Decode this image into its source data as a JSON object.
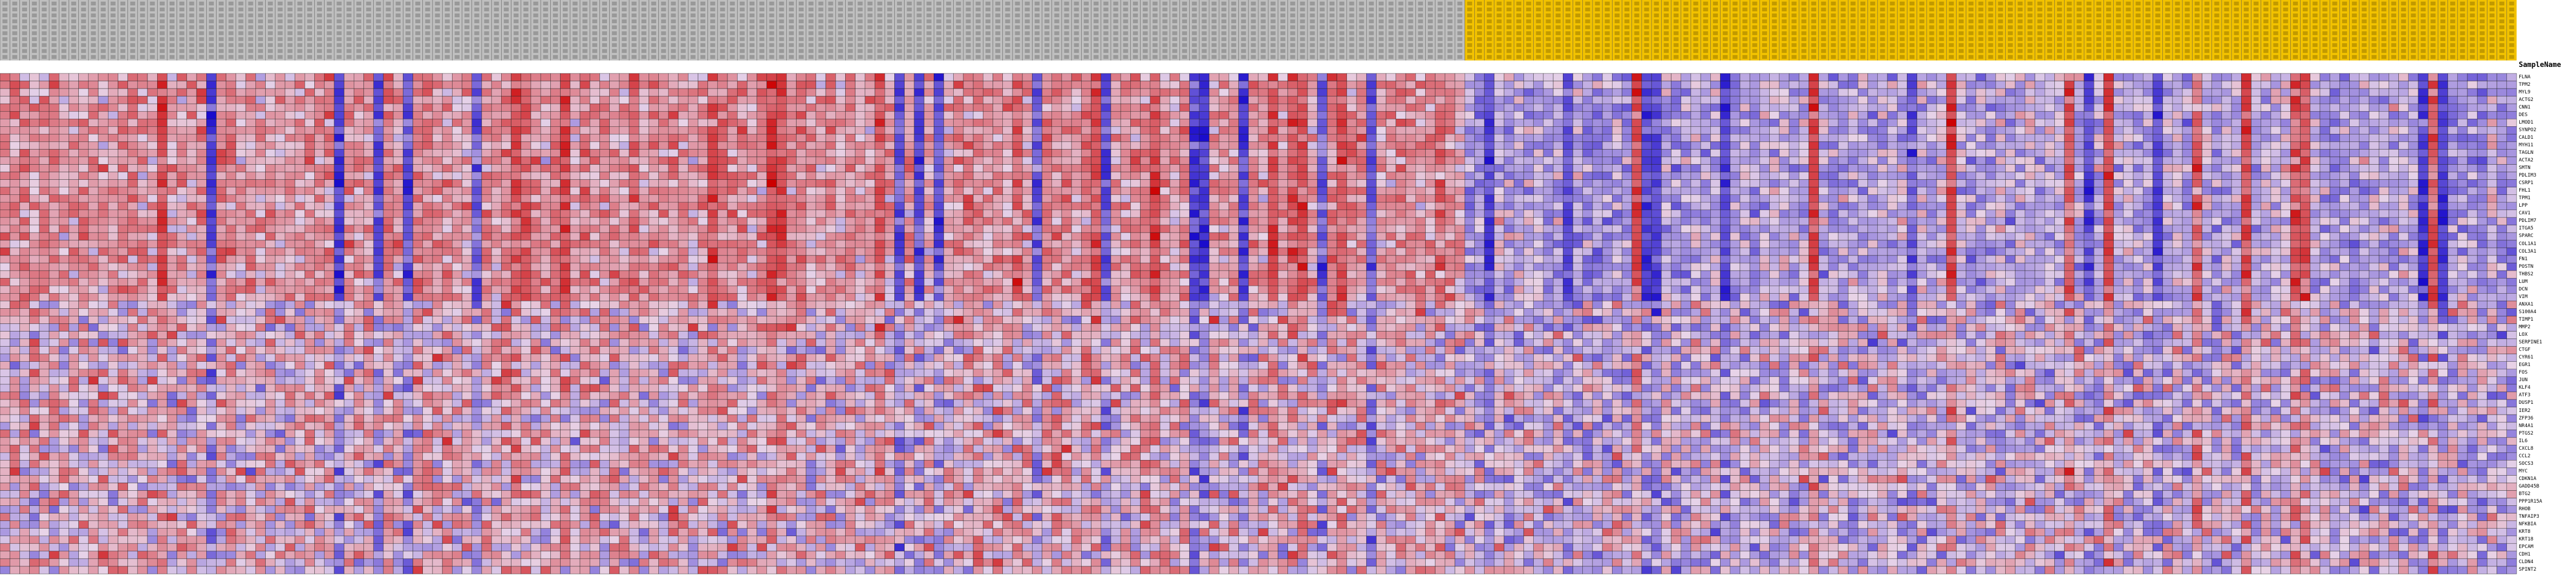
{
  "chart_data": {
    "type": "heatmap",
    "column_header_label": "SampleName",
    "n_columns": 256,
    "n_rows": 66,
    "groups": [
      {
        "color": "#bfbfbf",
        "columns": 149
      },
      {
        "color": "#f2c200",
        "columns": 107
      }
    ],
    "colors": {
      "high": "#cc0000",
      "mid": "#e8d4e8",
      "low": "#1a0ccc",
      "grid": "#222222"
    },
    "value_range": [
      -3,
      3
    ],
    "row_labels": [
      "FLNA",
      "TPM2",
      "MYL9",
      "ACTG2",
      "CNN1",
      "DES",
      "LMOD1",
      "SYNPO2",
      "CALD1",
      "MYH11",
      "TAGLN",
      "ACTA2",
      "SMTN",
      "PDLIM3",
      "CSRP1",
      "FHL1",
      "TPM1",
      "LPP",
      "CAV1",
      "PDLIM7",
      "ITGA5",
      "SPARC",
      "COL1A1",
      "COL3A1",
      "FN1",
      "POSTN",
      "THBS2",
      "LUM",
      "DCN",
      "VIM",
      "ANXA1",
      "S100A4",
      "TIMP1",
      "MMP2",
      "LOX",
      "SERPINE1",
      "CTGF",
      "CYR61",
      "EGR1",
      "FOS",
      "JUN",
      "KLF4",
      "ATF3",
      "DUSP1",
      "IER2",
      "ZFP36",
      "NR4A1",
      "PTGS2",
      "IL6",
      "CXCL8",
      "CCL2",
      "SOCS3",
      "MYC",
      "CDKN1A",
      "GADD45B",
      "BTG2",
      "PPP1R15A",
      "RHOB",
      "TNFAIP3",
      "NFKBIA",
      "KRT8",
      "KRT18",
      "EPCAM",
      "CDH1",
      "CLDN4",
      "SPINT2"
    ]
  }
}
